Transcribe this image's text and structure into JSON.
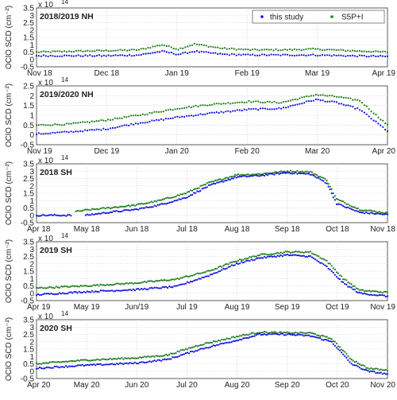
{
  "colors": {
    "this_study": "#1010e0",
    "s5p": "#1e7d1e",
    "grid": "#d0d0d0",
    "axis": "#333333"
  },
  "legend": {
    "entries": [
      "this study",
      "S5P+I"
    ],
    "placement": "top-right"
  },
  "chart_data": [
    {
      "type": "scatter",
      "title": "2018/2019 NH",
      "ylabel": "OClO SCD (cm⁻²)",
      "yscale_label": "x 10",
      "yscale_exp": "14",
      "xlim": [
        "2018-11-01",
        "2019-04-01"
      ],
      "ylim": [
        -0.5,
        3.5
      ],
      "yticks": [
        "-0.5",
        "0",
        "0.5",
        "1",
        "1.5",
        "2",
        "2.5",
        "3",
        "3.5"
      ],
      "xticks": [
        "Nov 18",
        "Dec 18",
        "Jan 19",
        "Feb 19",
        "Mar 19",
        "Apr 19"
      ],
      "series": [
        {
          "name": "this study",
          "x": [
            "2018-11-01",
            "2018-11-15",
            "2018-12-01",
            "2018-12-15",
            "2018-12-25",
            "2019-01-01",
            "2019-01-08",
            "2019-01-20",
            "2019-02-01",
            "2019-02-15",
            "2019-03-01",
            "2019-03-15",
            "2019-04-01"
          ],
          "y": [
            0.25,
            0.25,
            0.25,
            0.3,
            0.55,
            0.35,
            0.55,
            0.35,
            0.3,
            0.3,
            0.3,
            0.25,
            0.2
          ]
        },
        {
          "name": "S5P+I",
          "x": [
            "2018-11-01",
            "2018-11-15",
            "2018-12-01",
            "2018-12-15",
            "2018-12-25",
            "2019-01-01",
            "2019-01-08",
            "2019-01-20",
            "2019-02-01",
            "2019-02-15",
            "2019-03-01",
            "2019-03-15",
            "2019-04-01"
          ],
          "y": [
            0.5,
            0.55,
            0.6,
            0.65,
            1.0,
            0.7,
            1.05,
            0.75,
            0.65,
            0.65,
            0.7,
            0.6,
            0.5
          ]
        }
      ]
    },
    {
      "type": "scatter",
      "title": "2019/2020 NH",
      "ylabel": "OClO SCD (cm⁻²)",
      "yscale_label": "x 10",
      "yscale_exp": "14",
      "xlim": [
        "2019-11-01",
        "2020-04-01"
      ],
      "ylim": [
        -0.5,
        2.5
      ],
      "yticks": [
        "-0.5",
        "0",
        "0.5",
        "1",
        "1.5",
        "2",
        "2.5"
      ],
      "xticks": [
        "Nov 19",
        "Dec 19",
        "Jan 20",
        "Feb 20",
        "Mar 20",
        "Apr 20"
      ],
      "series": [
        {
          "name": "this study",
          "x": [
            "2019-11-01",
            "2019-11-15",
            "2019-12-01",
            "2019-12-15",
            "2020-01-01",
            "2020-01-15",
            "2020-02-01",
            "2020-02-15",
            "2020-03-01",
            "2020-03-10",
            "2020-03-20",
            "2020-04-01"
          ],
          "y": [
            0.05,
            0.15,
            0.3,
            0.6,
            0.9,
            1.1,
            1.3,
            1.35,
            1.8,
            1.65,
            1.3,
            0.2
          ]
        },
        {
          "name": "S5P+I",
          "x": [
            "2019-11-01",
            "2019-11-15",
            "2019-12-01",
            "2019-12-15",
            "2020-01-01",
            "2020-01-15",
            "2020-02-01",
            "2020-02-15",
            "2020-03-01",
            "2020-03-10",
            "2020-03-20",
            "2020-04-01"
          ],
          "y": [
            0.5,
            0.55,
            0.75,
            1.0,
            1.35,
            1.55,
            1.7,
            1.65,
            2.05,
            1.95,
            1.75,
            0.5
          ]
        }
      ]
    },
    {
      "type": "scatter",
      "title": "2018 SH",
      "ylabel": "OClO SCD (cm⁻²)",
      "yscale_label": "x 10",
      "yscale_exp": "14",
      "xlim": [
        "2018-04-01",
        "2018-11-01"
      ],
      "ylim": [
        -0.5,
        3.5
      ],
      "yticks": [
        "-0.5",
        "0",
        "0.5",
        "1",
        "1.5",
        "2",
        "2.5",
        "3",
        "3.5"
      ],
      "xticks": [
        "Apr 18",
        "May 18",
        "Jun 18",
        "Jul 18",
        "Aug 18",
        "Sep 18",
        "Oct 18",
        "Nov 18"
      ],
      "series": [
        {
          "name": "this study",
          "x": [
            "2018-04-01",
            "2018-05-01",
            "2018-05-15",
            "2018-06-01",
            "2018-06-15",
            "2018-07-01",
            "2018-07-15",
            "2018-08-01",
            "2018-08-15",
            "2018-09-01",
            "2018-09-15",
            "2018-09-25",
            "2018-10-01",
            "2018-10-15",
            "2018-11-01"
          ],
          "y": [
            0.0,
            0.0,
            0.2,
            0.4,
            0.7,
            1.2,
            2.0,
            2.6,
            2.7,
            2.9,
            2.8,
            2.2,
            0.8,
            0.2,
            0.05
          ]
        },
        {
          "name": "S5P+I",
          "x": [
            "2018-04-25",
            "2018-05-01",
            "2018-05-15",
            "2018-06-01",
            "2018-06-15",
            "2018-07-01",
            "2018-07-15",
            "2018-08-01",
            "2018-08-15",
            "2018-09-01",
            "2018-09-15",
            "2018-09-25",
            "2018-10-01",
            "2018-10-15",
            "2018-11-01"
          ],
          "y": [
            0.25,
            0.35,
            0.5,
            0.7,
            1.0,
            1.5,
            2.2,
            2.75,
            2.8,
            3.0,
            2.95,
            2.4,
            1.1,
            0.4,
            0.15
          ]
        }
      ]
    },
    {
      "type": "scatter",
      "title": "2019 SH",
      "ylabel": "OClO SCD (cm⁻²)",
      "yscale_label": "x 10",
      "yscale_exp": "14",
      "xlim": [
        "2019-04-01",
        "2019-11-01"
      ],
      "ylim": [
        -0.5,
        3.5
      ],
      "yticks": [
        "-0.5",
        "0",
        "0.5",
        "1",
        "1.5",
        "2",
        "2.5",
        "3",
        "3.5"
      ],
      "xticks": [
        "Apr 19",
        "May 19",
        "Jun/19",
        "Jul 19",
        "Aug 19",
        "Sep 19",
        "Oct 19",
        "Nov 19"
      ],
      "series": [
        {
          "name": "this study",
          "x": [
            "2019-04-01",
            "2019-05-01",
            "2019-06-01",
            "2019-06-25",
            "2019-07-15",
            "2019-08-01",
            "2019-08-15",
            "2019-09-01",
            "2019-09-15",
            "2019-09-25",
            "2019-10-05",
            "2019-10-15",
            "2019-11-01"
          ],
          "y": [
            -0.1,
            0.1,
            0.25,
            0.45,
            1.2,
            2.0,
            2.4,
            2.6,
            2.5,
            1.8,
            0.7,
            0.0,
            -0.2
          ]
        },
        {
          "name": "S5P+I",
          "x": [
            "2019-04-01",
            "2019-05-01",
            "2019-06-01",
            "2019-06-25",
            "2019-07-15",
            "2019-08-01",
            "2019-08-15",
            "2019-09-01",
            "2019-09-15",
            "2019-09-25",
            "2019-10-05",
            "2019-10-15",
            "2019-11-01"
          ],
          "y": [
            0.35,
            0.5,
            0.7,
            0.95,
            1.5,
            2.2,
            2.6,
            2.8,
            2.8,
            2.2,
            1.0,
            0.2,
            0.05
          ]
        }
      ]
    },
    {
      "type": "scatter",
      "title": "2020 SH",
      "ylabel": "OClO SCD (cm⁻²)",
      "yscale_label": "x 10",
      "yscale_exp": "14",
      "xlim": [
        "2020-04-01",
        "2020-11-01"
      ],
      "ylim": [
        -0.5,
        3.5
      ],
      "yticks": [
        "-0.5",
        "0",
        "0.5",
        "1",
        "1.5",
        "2",
        "2.5",
        "3",
        "3.5"
      ],
      "xticks": [
        "Apr 20",
        "May 20",
        "Jun 20",
        "Jul 20",
        "Aug 20",
        "Sep 20",
        "Oct 20",
        "Nov 20"
      ],
      "series": [
        {
          "name": "this study",
          "x": [
            "2020-04-01",
            "2020-05-01",
            "2020-06-01",
            "2020-06-20",
            "2020-07-10",
            "2020-08-01",
            "2020-08-15",
            "2020-09-01",
            "2020-09-15",
            "2020-09-28",
            "2020-10-10",
            "2020-10-20",
            "2020-11-01"
          ],
          "y": [
            0.2,
            0.4,
            0.55,
            0.8,
            1.5,
            2.1,
            2.5,
            2.5,
            2.4,
            2.0,
            0.5,
            0.0,
            -0.2
          ]
        },
        {
          "name": "S5P+I",
          "x": [
            "2020-04-01",
            "2020-05-01",
            "2020-06-01",
            "2020-06-20",
            "2020-07-10",
            "2020-08-01",
            "2020-08-15",
            "2020-09-01",
            "2020-09-15",
            "2020-09-28",
            "2020-10-10",
            "2020-10-20",
            "2020-11-01"
          ],
          "y": [
            0.5,
            0.75,
            0.9,
            1.1,
            1.8,
            2.35,
            2.65,
            2.6,
            2.6,
            2.2,
            0.8,
            0.2,
            0.05
          ]
        }
      ]
    }
  ]
}
